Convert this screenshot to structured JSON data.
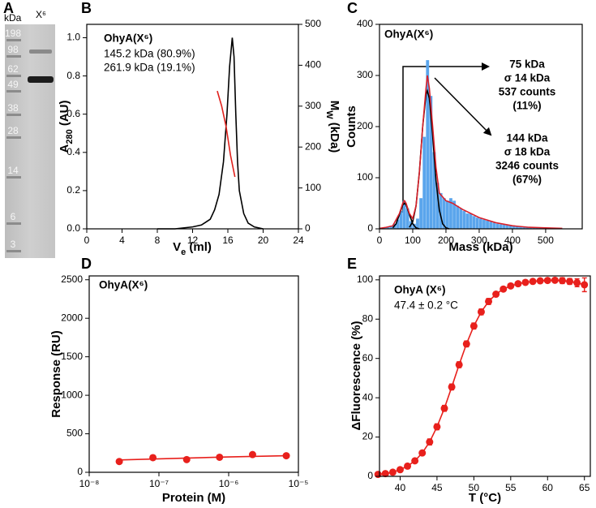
{
  "gel": {
    "panel": "A",
    "unit": "kDa",
    "lane": "X⁶",
    "markers": [
      198,
      98,
      62,
      49,
      38,
      28,
      14,
      6,
      3
    ]
  },
  "chart_data": [
    {
      "type": "line",
      "panel": "B",
      "xlabel": [
        "V",
        "e",
        " (ml)"
      ],
      "ylabel": [
        "A",
        "280",
        " (AU)"
      ],
      "y2label": [
        "M",
        "W",
        " (kDa)"
      ],
      "annotations": [
        "OhyA(X⁶)",
        "145.2 kDa (80.9%)",
        "261.9 kDa (19.1%)"
      ],
      "xlim": [
        0,
        24
      ],
      "xticks": [
        0,
        4,
        8,
        12,
        16,
        20,
        24
      ],
      "ylim": [
        0,
        1.07
      ],
      "yticks": [
        {
          "value": 0,
          "label": "0.0"
        },
        {
          "value": 0.2,
          "label": "0.2"
        },
        {
          "value": 0.4,
          "label": "0.4"
        },
        {
          "value": 0.6,
          "label": "0.6"
        },
        {
          "value": 0.8,
          "label": "0.8"
        },
        {
          "value": 1,
          "label": "1.0"
        }
      ],
      "y2lim": [
        0,
        500
      ],
      "y2ticks": [
        0,
        100,
        200,
        300,
        400,
        500
      ],
      "series": [
        {
          "color": "#000000",
          "x": [
            8,
            10,
            12,
            13,
            14,
            14.5,
            15,
            15.5,
            15.9,
            16.2,
            16.5,
            16.7,
            16.9,
            17.1,
            17.3,
            17.8,
            18.3,
            19,
            20
          ],
          "values": [
            0,
            0,
            0.01,
            0.02,
            0.05,
            0.1,
            0.18,
            0.35,
            0.6,
            0.85,
            1.0,
            0.9,
            0.6,
            0.35,
            0.2,
            0.08,
            0.03,
            0.01,
            0
          ]
        },
        {
          "color": "#e0201c",
          "axis": "y2",
          "x": [
            14.8,
            15.3,
            15.8,
            16.3,
            16.8
          ],
          "values": [
            337,
            300,
            250,
            180,
            127
          ]
        }
      ]
    },
    {
      "type": "histogram",
      "panel": "C",
      "xlabel": "Mass (kDa)",
      "ylabel": "Counts",
      "annotations": [
        "OhyA(X⁶)",
        "75 kDa",
        "σ 14 kDa",
        "537 counts",
        "(11%)",
        "144 kDa",
        "σ 18 kDa",
        "3246 counts",
        "(67%)"
      ],
      "xlim": [
        0,
        610
      ],
      "xticks": [
        0,
        100,
        200,
        300,
        400,
        500
      ],
      "ylim": [
        0,
        400
      ],
      "yticks": [
        0,
        100,
        200,
        300,
        400
      ],
      "color": "#5aa5ec",
      "bins": [
        10,
        20,
        30,
        40,
        50,
        60,
        70,
        80,
        90,
        100,
        110,
        120,
        130,
        140,
        150,
        160,
        170,
        180,
        190,
        200,
        210,
        220,
        230,
        240,
        250,
        260,
        270,
        280,
        290,
        300,
        310,
        320,
        330,
        340,
        350,
        360,
        370,
        380,
        390,
        400,
        410,
        420,
        430,
        440,
        450,
        460,
        470,
        480,
        490,
        500,
        510,
        520,
        530,
        540,
        550
      ],
      "counts": [
        2,
        4,
        6,
        10,
        18,
        35,
        55,
        40,
        15,
        10,
        20,
        60,
        180,
        330,
        260,
        150,
        90,
        70,
        60,
        55,
        60,
        55,
        45,
        40,
        35,
        30,
        30,
        25,
        22,
        20,
        18,
        16,
        14,
        12,
        10,
        9,
        8,
        7,
        6,
        6,
        5,
        5,
        4,
        4,
        3,
        3,
        3,
        2,
        2,
        2,
        2,
        1,
        1,
        1
      ],
      "series": [
        {
          "color": "#000000",
          "x": [
            40,
            50,
            60,
            70,
            75,
            80,
            90,
            100,
            110,
            120
          ],
          "values": [
            2,
            10,
            28,
            47,
            50,
            47,
            28,
            10,
            2,
            0
          ]
        },
        {
          "color": "#000000",
          "x": [
            90,
            100,
            110,
            120,
            130,
            140,
            144,
            150,
            160,
            170,
            180,
            190,
            200,
            210
          ],
          "values": [
            3,
            14,
            45,
            111,
            200,
            263,
            270,
            255,
            182,
            95,
            37,
            10,
            2,
            0
          ]
        },
        {
          "color": "#d8202a",
          "x": [
            0,
            20,
            40,
            60,
            70,
            75,
            80,
            90,
            100,
            110,
            120,
            130,
            140,
            144,
            150,
            160,
            170,
            180,
            200,
            220,
            250,
            300,
            350,
            400,
            450,
            500,
            550
          ],
          "values": [
            1,
            3,
            6,
            30,
            50,
            55,
            50,
            30,
            20,
            45,
            110,
            200,
            275,
            300,
            275,
            200,
            120,
            70,
            55,
            50,
            38,
            22,
            12,
            6,
            3,
            2,
            1
          ]
        }
      ]
    },
    {
      "type": "scatter",
      "panel": "D",
      "xlabel": "Protein (M)",
      "ylabel": "Response (RU)",
      "annotations": [
        "OhyA(X⁶)"
      ],
      "xscale": "log",
      "xlim": [
        1e-08,
        1e-05
      ],
      "xticks": [
        {
          "value": 1e-08,
          "label": "10⁻⁸"
        },
        {
          "value": 1e-07,
          "label": "10⁻⁷"
        },
        {
          "value": 1e-06,
          "label": "10⁻⁶"
        },
        {
          "value": 1e-05,
          "label": "10⁻⁵"
        }
      ],
      "ylim": [
        0,
        2550
      ],
      "yticks": [
        0,
        500,
        1000,
        1500,
        2000,
        2500
      ],
      "series": [
        {
          "color": "#e8201c",
          "marker": true,
          "x": [
            2.7e-08,
            8.2e-08,
            2.5e-07,
            7.4e-07,
            2.2e-06,
            6.7e-06
          ],
          "values": [
            140,
            190,
            165,
            195,
            230,
            215
          ]
        },
        {
          "color": "#e8201c",
          "line": true,
          "x": [
            2.7e-08,
            1e-07,
            1e-06,
            6.7e-06
          ],
          "values": [
            160,
            175,
            200,
            215
          ]
        }
      ]
    },
    {
      "type": "scatter",
      "panel": "E",
      "xlabel": "T (°C)",
      "ylabel": "ΔFluorescence (%)",
      "annotations": [
        "OhyA (X⁶)",
        "47.4 ± 0.2 °C"
      ],
      "xlim": [
        37.2,
        65.8
      ],
      "xticks": [
        40,
        45,
        50,
        55,
        60,
        65
      ],
      "ylim": [
        0,
        102
      ],
      "yticks": [
        0,
        20,
        40,
        60,
        80,
        100
      ],
      "series": [
        {
          "color": "#e8201c",
          "marker": true,
          "line": true,
          "x": [
            37,
            38,
            39,
            40,
            41,
            42,
            43,
            44,
            45,
            46,
            47,
            48,
            49,
            50,
            51,
            52,
            53,
            54,
            55,
            56,
            57,
            58,
            59,
            60,
            61,
            62,
            63,
            64,
            65
          ],
          "values": [
            1,
            1.4,
            2.1,
            3.4,
            5.2,
            7.9,
            11.9,
            17.5,
            25.2,
            34.6,
            45.5,
            56.8,
            67.4,
            76.5,
            83.7,
            89,
            92.7,
            95.3,
            96.9,
            98,
            98.7,
            99.2,
            99.5,
            99.7,
            99.8,
            99.6,
            99.2,
            98.5,
            97.5
          ],
          "errors": [
            0.5,
            0.5,
            0.5,
            0.5,
            0.5,
            0.5,
            0.5,
            1.5,
            1.5,
            1.5,
            1.5,
            1.5,
            1.5,
            1.5,
            1.5,
            1.5,
            1,
            1,
            1,
            1,
            1,
            1,
            1,
            1,
            1,
            1.5,
            1.5,
            2,
            3.5
          ]
        }
      ]
    }
  ]
}
